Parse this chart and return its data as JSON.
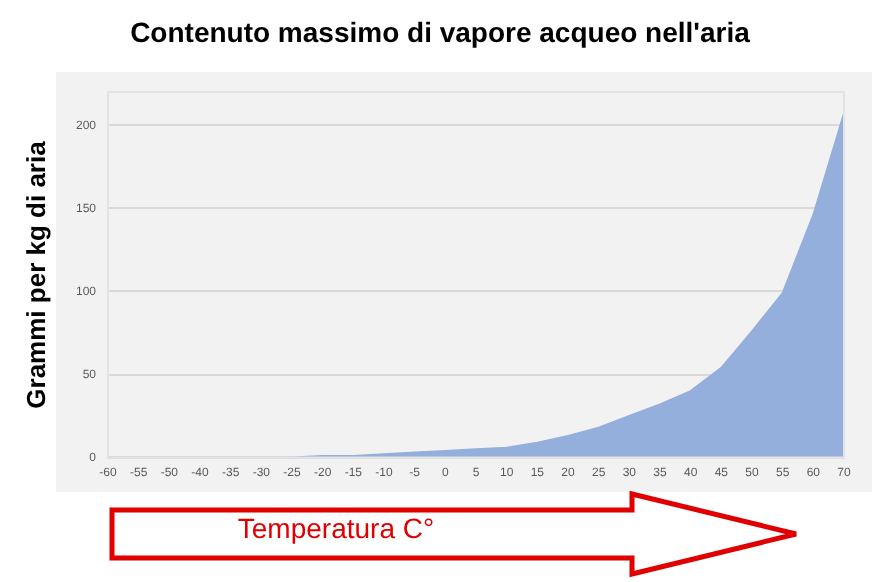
{
  "chart_data": {
    "type": "area",
    "title": "Contenuto massimo di vapore acqueo nell'aria",
    "xlabel": "Temperatura C°",
    "ylabel": "Grammi per kg di aria",
    "categories": [
      "-60",
      "-55",
      "-50",
      "-40",
      "-35",
      "-30",
      "-25",
      "-20",
      "-15",
      "-10",
      "-5",
      "0",
      "5",
      "10",
      "15",
      "20",
      "25",
      "30",
      "35",
      "40",
      "45",
      "50",
      "55",
      "60",
      "70"
    ],
    "series": [
      {
        "color": "#94afdc",
        "values": [
          0,
          0,
          0,
          0,
          0,
          0,
          0,
          1,
          1,
          2,
          3,
          4,
          5,
          6,
          9,
          13,
          18,
          25,
          32,
          40,
          54,
          76,
          99,
          146,
          207
        ]
      }
    ],
    "ylim": [
      0,
      220
    ],
    "yticks": [
      0,
      50,
      100,
      150,
      200
    ],
    "grid": "y",
    "legend": false
  }
}
